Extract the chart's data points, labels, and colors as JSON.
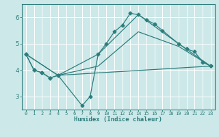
{
  "title": "",
  "xlabel": "Humidex (Indice chaleur)",
  "ylabel": "",
  "bg_color": "#cce8e8",
  "grid_color": "#ffffff",
  "line_color": "#2d7d7d",
  "xlim": [
    -0.5,
    23.5
  ],
  "ylim": [
    2.5,
    6.5
  ],
  "yticks": [
    3,
    4,
    5,
    6
  ],
  "xticks": [
    0,
    1,
    2,
    3,
    4,
    5,
    6,
    7,
    8,
    9,
    10,
    11,
    12,
    13,
    14,
    15,
    16,
    17,
    18,
    19,
    20,
    21,
    22,
    23
  ],
  "series_main": {
    "x": [
      0,
      1,
      2,
      3,
      4,
      7,
      8,
      9,
      10,
      11,
      12,
      13,
      14,
      15,
      16,
      17,
      19,
      20,
      21,
      22,
      23
    ],
    "y": [
      4.6,
      4.0,
      3.9,
      3.7,
      3.8,
      2.65,
      3.0,
      4.6,
      5.0,
      5.45,
      5.7,
      6.15,
      6.1,
      5.9,
      5.75,
      5.5,
      5.0,
      4.8,
      4.7,
      4.3,
      4.15
    ]
  },
  "series_lower_flat": {
    "x": [
      0,
      1,
      2,
      3,
      4,
      23
    ],
    "y": [
      4.6,
      4.0,
      3.9,
      3.7,
      3.8,
      4.15
    ]
  },
  "series_upper_env": {
    "x": [
      0,
      4,
      9,
      14,
      19,
      23
    ],
    "y": [
      4.6,
      3.8,
      4.6,
      6.1,
      5.0,
      4.15
    ]
  },
  "series_mid_env": {
    "x": [
      0,
      4,
      9,
      14,
      19,
      23
    ],
    "y": [
      4.6,
      3.8,
      4.15,
      5.45,
      4.9,
      4.15
    ]
  }
}
